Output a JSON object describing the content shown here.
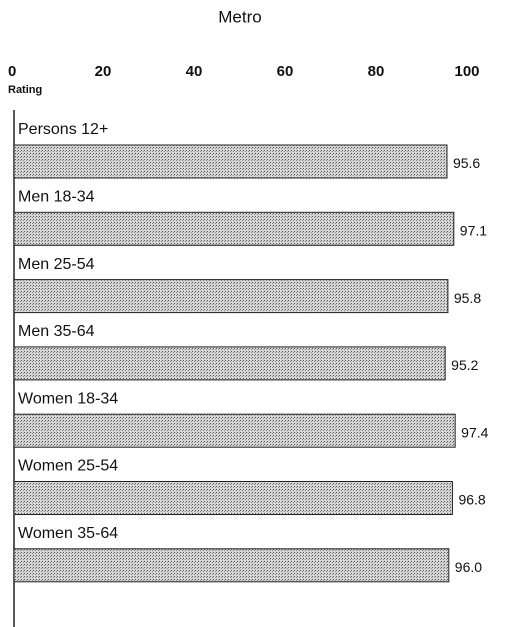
{
  "chart_data": {
    "type": "bar",
    "orientation": "horizontal",
    "title": "Metro",
    "x_label": "Rating",
    "categories": [
      "Persons 12+",
      "Men 18-34",
      "Men 25-54",
      "Men 35-64",
      "Women 18-34",
      "Women 25-54",
      "Women 35-64"
    ],
    "values": [
      95.6,
      97.1,
      95.8,
      95.2,
      97.4,
      96.8,
      96.0
    ],
    "value_labels": [
      "95.6",
      "97.1",
      "95.8",
      "95.2",
      "97.4",
      "96.8",
      "96.0"
    ],
    "color": "#b8b8b8",
    "xlim": [
      0,
      100
    ],
    "xticks": [
      0,
      20,
      40,
      60,
      80,
      100
    ]
  }
}
